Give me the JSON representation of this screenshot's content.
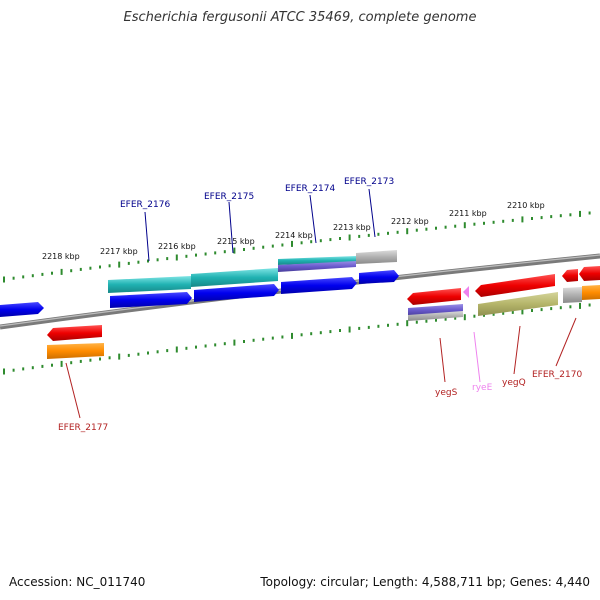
{
  "title": "Escherichia fergusonii ATCC 35469, complete genome",
  "footer": {
    "accession_label": "Accession:",
    "accession": "NC_011740",
    "topology_label": "Topology:",
    "topology": "circular",
    "length_label": "Length:",
    "length": "4,588,711 bp",
    "genes_label": "Genes:",
    "genes": "4,440"
  },
  "scale_labels": [
    "2218 kbp",
    "2217 kbp",
    "2216 kbp",
    "2215 kbp",
    "2214 kbp",
    "2213 kbp",
    "2212 kbp",
    "2211 kbp",
    "2210 kbp"
  ],
  "forward_gene_labels": [
    "EFER_2176",
    "EFER_2175",
    "EFER_2174",
    "EFER_2173"
  ],
  "reverse_gene_labels": [
    "EFER_2177",
    "yegS",
    "ryeE",
    "yegQ",
    "EFER_2170"
  ],
  "colors": {
    "backbone": "#6e6e6e",
    "tick": "#2e8b2e",
    "forward_label": "#00008b",
    "reverse_label": "#b22222",
    "rna_label": "#ee82ee",
    "cds_forward": "#0000ee",
    "cds_reverse": "#ee0000",
    "gene_teal": "#20b2b2",
    "gene_orange": "#ff8c00",
    "gene_olive": "#b5b56a",
    "gene_slate": "#6a5acd",
    "gene_grey": "#b0b0b0",
    "trna_pink": "#ee82ee"
  }
}
